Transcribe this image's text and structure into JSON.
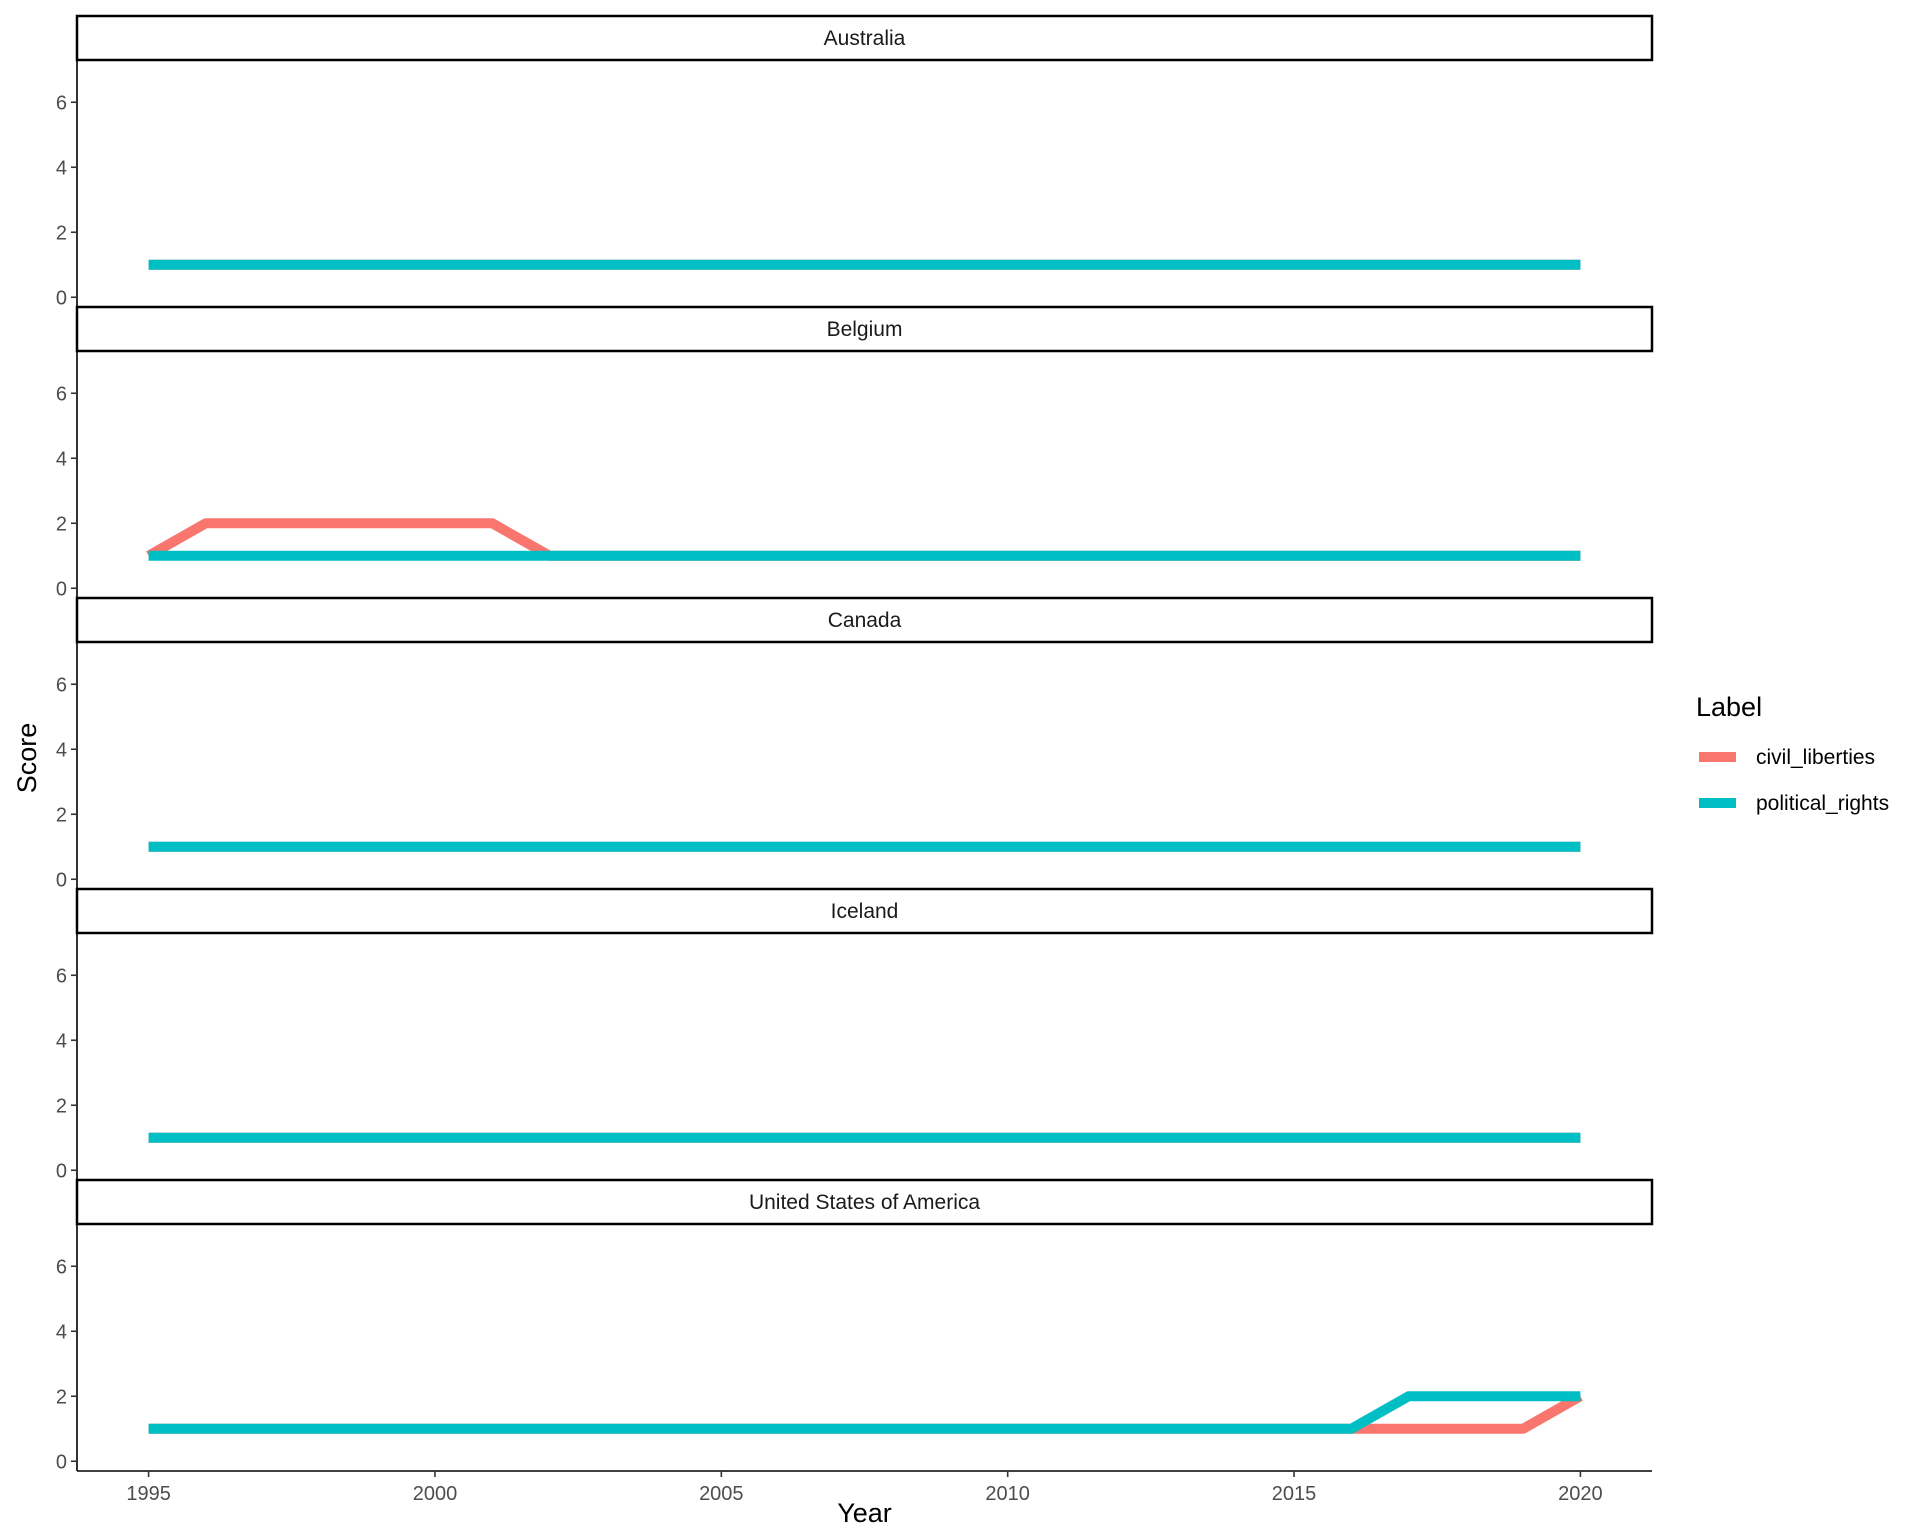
{
  "chart_data": {
    "type": "line",
    "xlabel": "Year",
    "ylabel": "Score",
    "xlim": [
      1993.75,
      2021.25
    ],
    "ylim": [
      -0.3,
      7.3
    ],
    "x_ticks": [
      1995,
      2000,
      2005,
      2010,
      2015,
      2020
    ],
    "y_ticks": [
      0,
      2,
      4,
      6
    ],
    "grid": false,
    "legend": {
      "title": "Label",
      "position": "right",
      "entries": [
        {
          "name": "civil_liberties",
          "color": "#F8766D"
        },
        {
          "name": "political_rights",
          "color": "#00BFC4"
        }
      ]
    },
    "x": [
      1995,
      1996,
      1997,
      1998,
      1999,
      2000,
      2001,
      2002,
      2003,
      2004,
      2005,
      2006,
      2007,
      2008,
      2009,
      2010,
      2011,
      2012,
      2013,
      2014,
      2015,
      2016,
      2017,
      2018,
      2019,
      2020
    ],
    "facets": [
      {
        "title": "Australia",
        "series": [
          {
            "name": "civil_liberties",
            "values": [
              1,
              1,
              1,
              1,
              1,
              1,
              1,
              1,
              1,
              1,
              1,
              1,
              1,
              1,
              1,
              1,
              1,
              1,
              1,
              1,
              1,
              1,
              1,
              1,
              1,
              1
            ]
          },
          {
            "name": "political_rights",
            "values": [
              1,
              1,
              1,
              1,
              1,
              1,
              1,
              1,
              1,
              1,
              1,
              1,
              1,
              1,
              1,
              1,
              1,
              1,
              1,
              1,
              1,
              1,
              1,
              1,
              1,
              1
            ]
          }
        ]
      },
      {
        "title": "Belgium",
        "series": [
          {
            "name": "civil_liberties",
            "values": [
              1,
              2,
              2,
              2,
              2,
              2,
              2,
              1,
              1,
              1,
              1,
              1,
              1,
              1,
              1,
              1,
              1,
              1,
              1,
              1,
              1,
              1,
              1,
              1,
              1,
              1
            ]
          },
          {
            "name": "political_rights",
            "values": [
              1,
              1,
              1,
              1,
              1,
              1,
              1,
              1,
              1,
              1,
              1,
              1,
              1,
              1,
              1,
              1,
              1,
              1,
              1,
              1,
              1,
              1,
              1,
              1,
              1,
              1
            ]
          }
        ]
      },
      {
        "title": "Canada",
        "series": [
          {
            "name": "civil_liberties",
            "values": [
              1,
              1,
              1,
              1,
              1,
              1,
              1,
              1,
              1,
              1,
              1,
              1,
              1,
              1,
              1,
              1,
              1,
              1,
              1,
              1,
              1,
              1,
              1,
              1,
              1,
              1
            ]
          },
          {
            "name": "political_rights",
            "values": [
              1,
              1,
              1,
              1,
              1,
              1,
              1,
              1,
              1,
              1,
              1,
              1,
              1,
              1,
              1,
              1,
              1,
              1,
              1,
              1,
              1,
              1,
              1,
              1,
              1,
              1
            ]
          }
        ]
      },
      {
        "title": "Iceland",
        "series": [
          {
            "name": "civil_liberties",
            "values": [
              1,
              1,
              1,
              1,
              1,
              1,
              1,
              1,
              1,
              1,
              1,
              1,
              1,
              1,
              1,
              1,
              1,
              1,
              1,
              1,
              1,
              1,
              1,
              1,
              1,
              1
            ]
          },
          {
            "name": "political_rights",
            "values": [
              1,
              1,
              1,
              1,
              1,
              1,
              1,
              1,
              1,
              1,
              1,
              1,
              1,
              1,
              1,
              1,
              1,
              1,
              1,
              1,
              1,
              1,
              1,
              1,
              1,
              1
            ]
          }
        ]
      },
      {
        "title": "United States of America",
        "series": [
          {
            "name": "civil_liberties",
            "values": [
              1,
              1,
              1,
              1,
              1,
              1,
              1,
              1,
              1,
              1,
              1,
              1,
              1,
              1,
              1,
              1,
              1,
              1,
              1,
              1,
              1,
              1,
              1,
              1,
              1,
              2
            ]
          },
          {
            "name": "political_rights",
            "values": [
              1,
              1,
              1,
              1,
              1,
              1,
              1,
              1,
              1,
              1,
              1,
              1,
              1,
              1,
              1,
              1,
              1,
              1,
              1,
              1,
              1,
              1,
              2,
              2,
              2,
              2
            ]
          }
        ]
      }
    ]
  }
}
